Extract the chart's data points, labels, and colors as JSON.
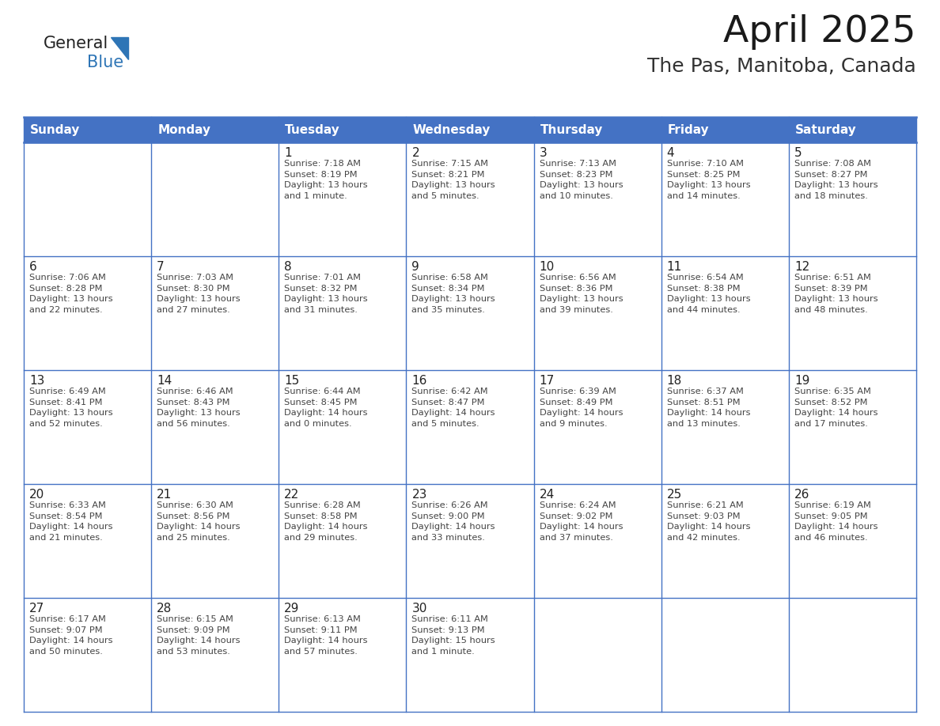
{
  "title": "April 2025",
  "subtitle": "The Pas, Manitoba, Canada",
  "header_bg": "#4472C4",
  "header_text_color": "#FFFFFF",
  "border_color": "#4472C4",
  "row_line_color": "#4472C4",
  "day_headers": [
    "Sunday",
    "Monday",
    "Tuesday",
    "Wednesday",
    "Thursday",
    "Friday",
    "Saturday"
  ],
  "weeks": [
    [
      {
        "day": "",
        "info": ""
      },
      {
        "day": "",
        "info": ""
      },
      {
        "day": "1",
        "info": "Sunrise: 7:18 AM\nSunset: 8:19 PM\nDaylight: 13 hours\nand 1 minute."
      },
      {
        "day": "2",
        "info": "Sunrise: 7:15 AM\nSunset: 8:21 PM\nDaylight: 13 hours\nand 5 minutes."
      },
      {
        "day": "3",
        "info": "Sunrise: 7:13 AM\nSunset: 8:23 PM\nDaylight: 13 hours\nand 10 minutes."
      },
      {
        "day": "4",
        "info": "Sunrise: 7:10 AM\nSunset: 8:25 PM\nDaylight: 13 hours\nand 14 minutes."
      },
      {
        "day": "5",
        "info": "Sunrise: 7:08 AM\nSunset: 8:27 PM\nDaylight: 13 hours\nand 18 minutes."
      }
    ],
    [
      {
        "day": "6",
        "info": "Sunrise: 7:06 AM\nSunset: 8:28 PM\nDaylight: 13 hours\nand 22 minutes."
      },
      {
        "day": "7",
        "info": "Sunrise: 7:03 AM\nSunset: 8:30 PM\nDaylight: 13 hours\nand 27 minutes."
      },
      {
        "day": "8",
        "info": "Sunrise: 7:01 AM\nSunset: 8:32 PM\nDaylight: 13 hours\nand 31 minutes."
      },
      {
        "day": "9",
        "info": "Sunrise: 6:58 AM\nSunset: 8:34 PM\nDaylight: 13 hours\nand 35 minutes."
      },
      {
        "day": "10",
        "info": "Sunrise: 6:56 AM\nSunset: 8:36 PM\nDaylight: 13 hours\nand 39 minutes."
      },
      {
        "day": "11",
        "info": "Sunrise: 6:54 AM\nSunset: 8:38 PM\nDaylight: 13 hours\nand 44 minutes."
      },
      {
        "day": "12",
        "info": "Sunrise: 6:51 AM\nSunset: 8:39 PM\nDaylight: 13 hours\nand 48 minutes."
      }
    ],
    [
      {
        "day": "13",
        "info": "Sunrise: 6:49 AM\nSunset: 8:41 PM\nDaylight: 13 hours\nand 52 minutes."
      },
      {
        "day": "14",
        "info": "Sunrise: 6:46 AM\nSunset: 8:43 PM\nDaylight: 13 hours\nand 56 minutes."
      },
      {
        "day": "15",
        "info": "Sunrise: 6:44 AM\nSunset: 8:45 PM\nDaylight: 14 hours\nand 0 minutes."
      },
      {
        "day": "16",
        "info": "Sunrise: 6:42 AM\nSunset: 8:47 PM\nDaylight: 14 hours\nand 5 minutes."
      },
      {
        "day": "17",
        "info": "Sunrise: 6:39 AM\nSunset: 8:49 PM\nDaylight: 14 hours\nand 9 minutes."
      },
      {
        "day": "18",
        "info": "Sunrise: 6:37 AM\nSunset: 8:51 PM\nDaylight: 14 hours\nand 13 minutes."
      },
      {
        "day": "19",
        "info": "Sunrise: 6:35 AM\nSunset: 8:52 PM\nDaylight: 14 hours\nand 17 minutes."
      }
    ],
    [
      {
        "day": "20",
        "info": "Sunrise: 6:33 AM\nSunset: 8:54 PM\nDaylight: 14 hours\nand 21 minutes."
      },
      {
        "day": "21",
        "info": "Sunrise: 6:30 AM\nSunset: 8:56 PM\nDaylight: 14 hours\nand 25 minutes."
      },
      {
        "day": "22",
        "info": "Sunrise: 6:28 AM\nSunset: 8:58 PM\nDaylight: 14 hours\nand 29 minutes."
      },
      {
        "day": "23",
        "info": "Sunrise: 6:26 AM\nSunset: 9:00 PM\nDaylight: 14 hours\nand 33 minutes."
      },
      {
        "day": "24",
        "info": "Sunrise: 6:24 AM\nSunset: 9:02 PM\nDaylight: 14 hours\nand 37 minutes."
      },
      {
        "day": "25",
        "info": "Sunrise: 6:21 AM\nSunset: 9:03 PM\nDaylight: 14 hours\nand 42 minutes."
      },
      {
        "day": "26",
        "info": "Sunrise: 6:19 AM\nSunset: 9:05 PM\nDaylight: 14 hours\nand 46 minutes."
      }
    ],
    [
      {
        "day": "27",
        "info": "Sunrise: 6:17 AM\nSunset: 9:07 PM\nDaylight: 14 hours\nand 50 minutes."
      },
      {
        "day": "28",
        "info": "Sunrise: 6:15 AM\nSunset: 9:09 PM\nDaylight: 14 hours\nand 53 minutes."
      },
      {
        "day": "29",
        "info": "Sunrise: 6:13 AM\nSunset: 9:11 PM\nDaylight: 14 hours\nand 57 minutes."
      },
      {
        "day": "30",
        "info": "Sunrise: 6:11 AM\nSunset: 9:13 PM\nDaylight: 15 hours\nand 1 minute."
      },
      {
        "day": "",
        "info": ""
      },
      {
        "day": "",
        "info": ""
      },
      {
        "day": "",
        "info": ""
      }
    ]
  ],
  "logo_general_color": "#222222",
  "logo_blue_color": "#2E75B6",
  "logo_triangle_color": "#2E75B6",
  "title_fontsize": 34,
  "subtitle_fontsize": 18,
  "header_fontsize": 11,
  "day_num_fontsize": 11,
  "info_fontsize": 8.2
}
